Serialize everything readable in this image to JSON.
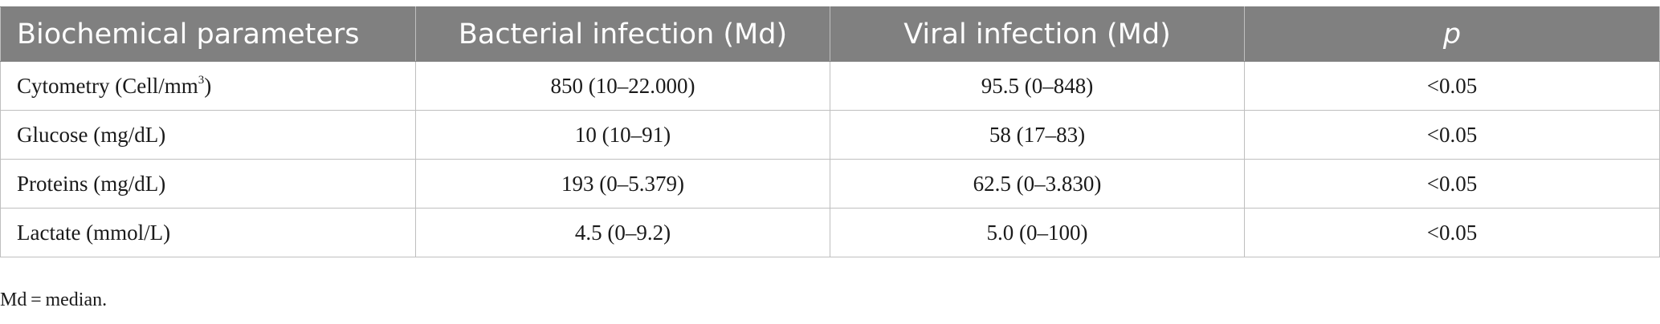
{
  "table": {
    "headers": [
      "Biochemical parameters",
      "Bacterial infection (Md)",
      "Viral infection (Md)",
      "p"
    ],
    "rows": [
      {
        "parameter": "Cytometry (Cell/mm",
        "parameter_sup": "3",
        "parameter_suffix": ")",
        "bacterial": "850 (10–22.000)",
        "viral": "95.5 (0–848)",
        "p": "<0.05"
      },
      {
        "parameter": "Glucose (mg/dL)",
        "bacterial": "10 (10–91)",
        "viral": "58 (17–83)",
        "p": "<0.05"
      },
      {
        "parameter": "Proteins (mg/dL)",
        "bacterial": "193 (0–5.379)",
        "viral": "62.5 (0–3.830)",
        "p": "<0.05"
      },
      {
        "parameter": "Lactate (mmol/L)",
        "bacterial": "4.5 (0–9.2)",
        "viral": "5.0 (0–100)",
        "p": "<0.05"
      }
    ]
  },
  "footnote": "Md = median.",
  "colors": {
    "header_bg": "#808080",
    "header_text": "#ffffff",
    "grid": "#bfbfbf"
  }
}
